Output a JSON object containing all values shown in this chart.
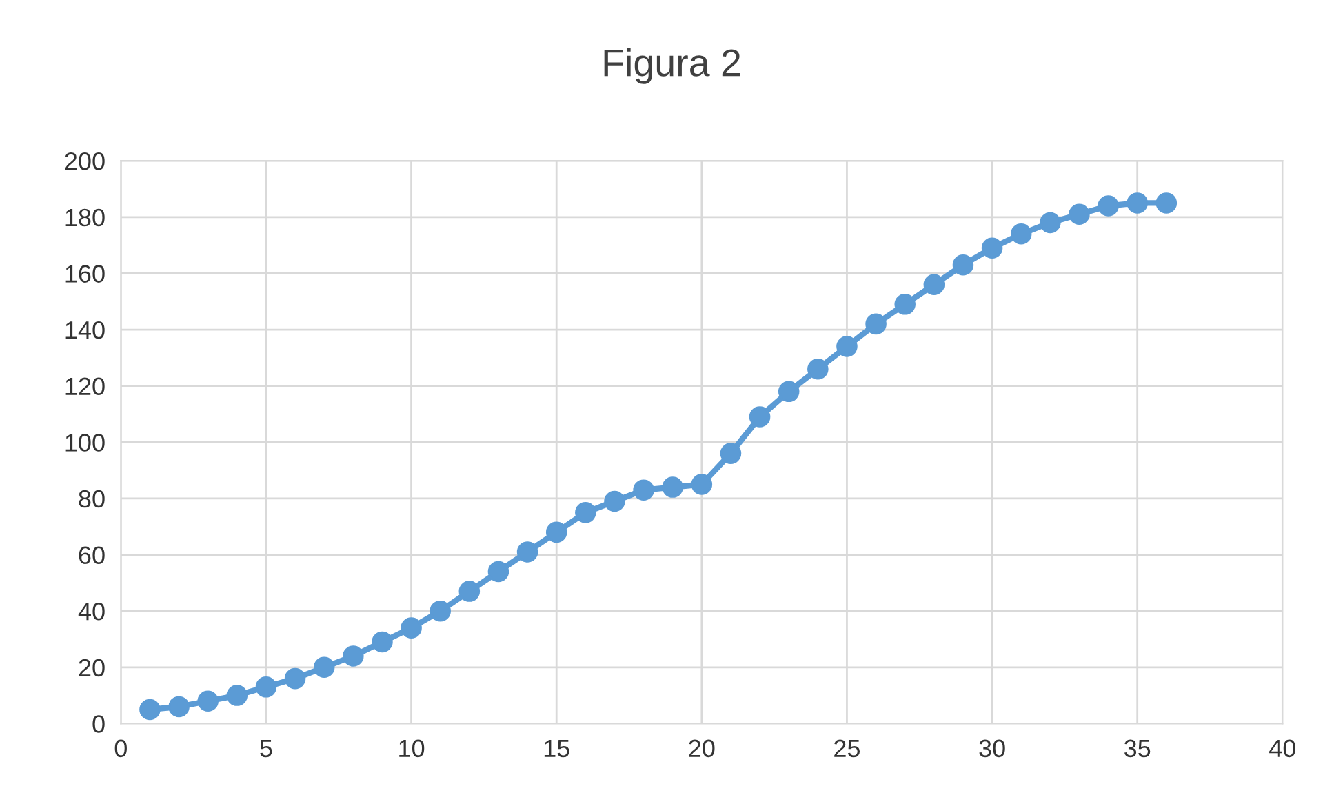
{
  "chart_data": {
    "type": "line",
    "title": "Figura 2",
    "x": [
      1,
      2,
      3,
      4,
      5,
      6,
      7,
      8,
      9,
      10,
      11,
      12,
      13,
      14,
      15,
      16,
      17,
      18,
      19,
      20,
      21,
      22,
      23,
      24,
      25,
      26,
      27,
      28,
      29,
      30,
      31,
      32,
      33,
      34,
      35,
      36
    ],
    "series": [
      {
        "color": "#5b9bd5",
        "values": [
          5,
          6,
          8,
          10,
          13,
          16,
          20,
          24,
          29,
          34,
          40,
          47,
          54,
          61,
          68,
          75,
          79,
          83,
          84,
          85,
          96,
          109,
          118,
          126,
          134,
          142,
          149,
          156,
          163,
          169,
          174,
          178,
          181,
          184,
          185,
          185
        ]
      }
    ],
    "xlim": [
      0,
      40
    ],
    "xticks": [
      0,
      5,
      10,
      15,
      20,
      25,
      30,
      35,
      40
    ],
    "ylim": [
      0,
      200
    ],
    "yticks": [
      0,
      20,
      40,
      60,
      80,
      100,
      120,
      140,
      160,
      180,
      200
    ],
    "grid": true,
    "marker": "circle",
    "line_style": "solid",
    "legend": false
  }
}
